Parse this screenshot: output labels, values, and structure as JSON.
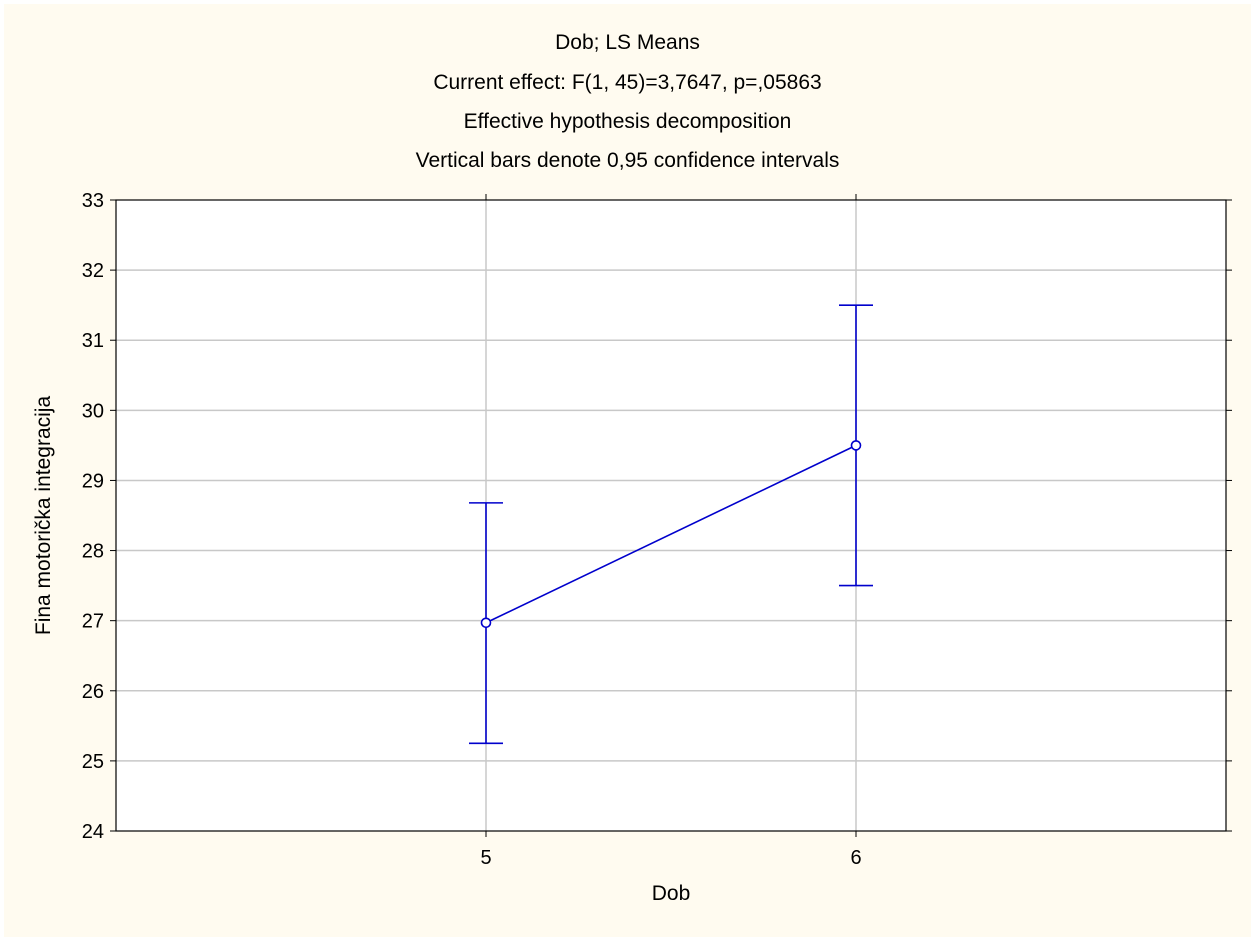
{
  "chart_data": {
    "type": "line",
    "title_lines": [
      "Dob; LS Means",
      "Current effect: F(1, 45)=3,7647, p=,05863",
      "Effective hypothesis decomposition",
      "Vertical bars denote 0,95 confidence intervals"
    ],
    "xlabel": "Dob",
    "ylabel": "Fina motorička integracija",
    "categories": [
      "5",
      "6"
    ],
    "means": [
      26.97,
      29.5
    ],
    "ci_lower": [
      25.25,
      27.5
    ],
    "ci_upper": [
      28.68,
      31.5
    ],
    "ylim": [
      24,
      33
    ],
    "yticks": [
      "24",
      "25",
      "26",
      "27",
      "28",
      "29",
      "30",
      "31",
      "32",
      "33"
    ],
    "grid": true,
    "series_color": "#0000cc",
    "grid_color": "#c8c8c8",
    "background_color": "#fffbf0",
    "plot_background": "#ffffff"
  }
}
